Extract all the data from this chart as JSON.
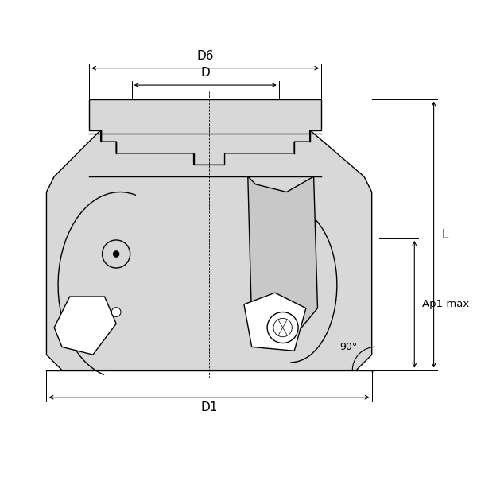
{
  "bg_color": "#ffffff",
  "line_color": "#000000",
  "fill_color": "#d8d8d8",
  "title": "",
  "fig_width": 6.0,
  "fig_height": 6.0,
  "dpi": 100,
  "labels": {
    "D6": "D6",
    "D": "D",
    "D1": "D1",
    "L": "L",
    "Ap1max": "Ap1 max",
    "angle": "90°"
  }
}
